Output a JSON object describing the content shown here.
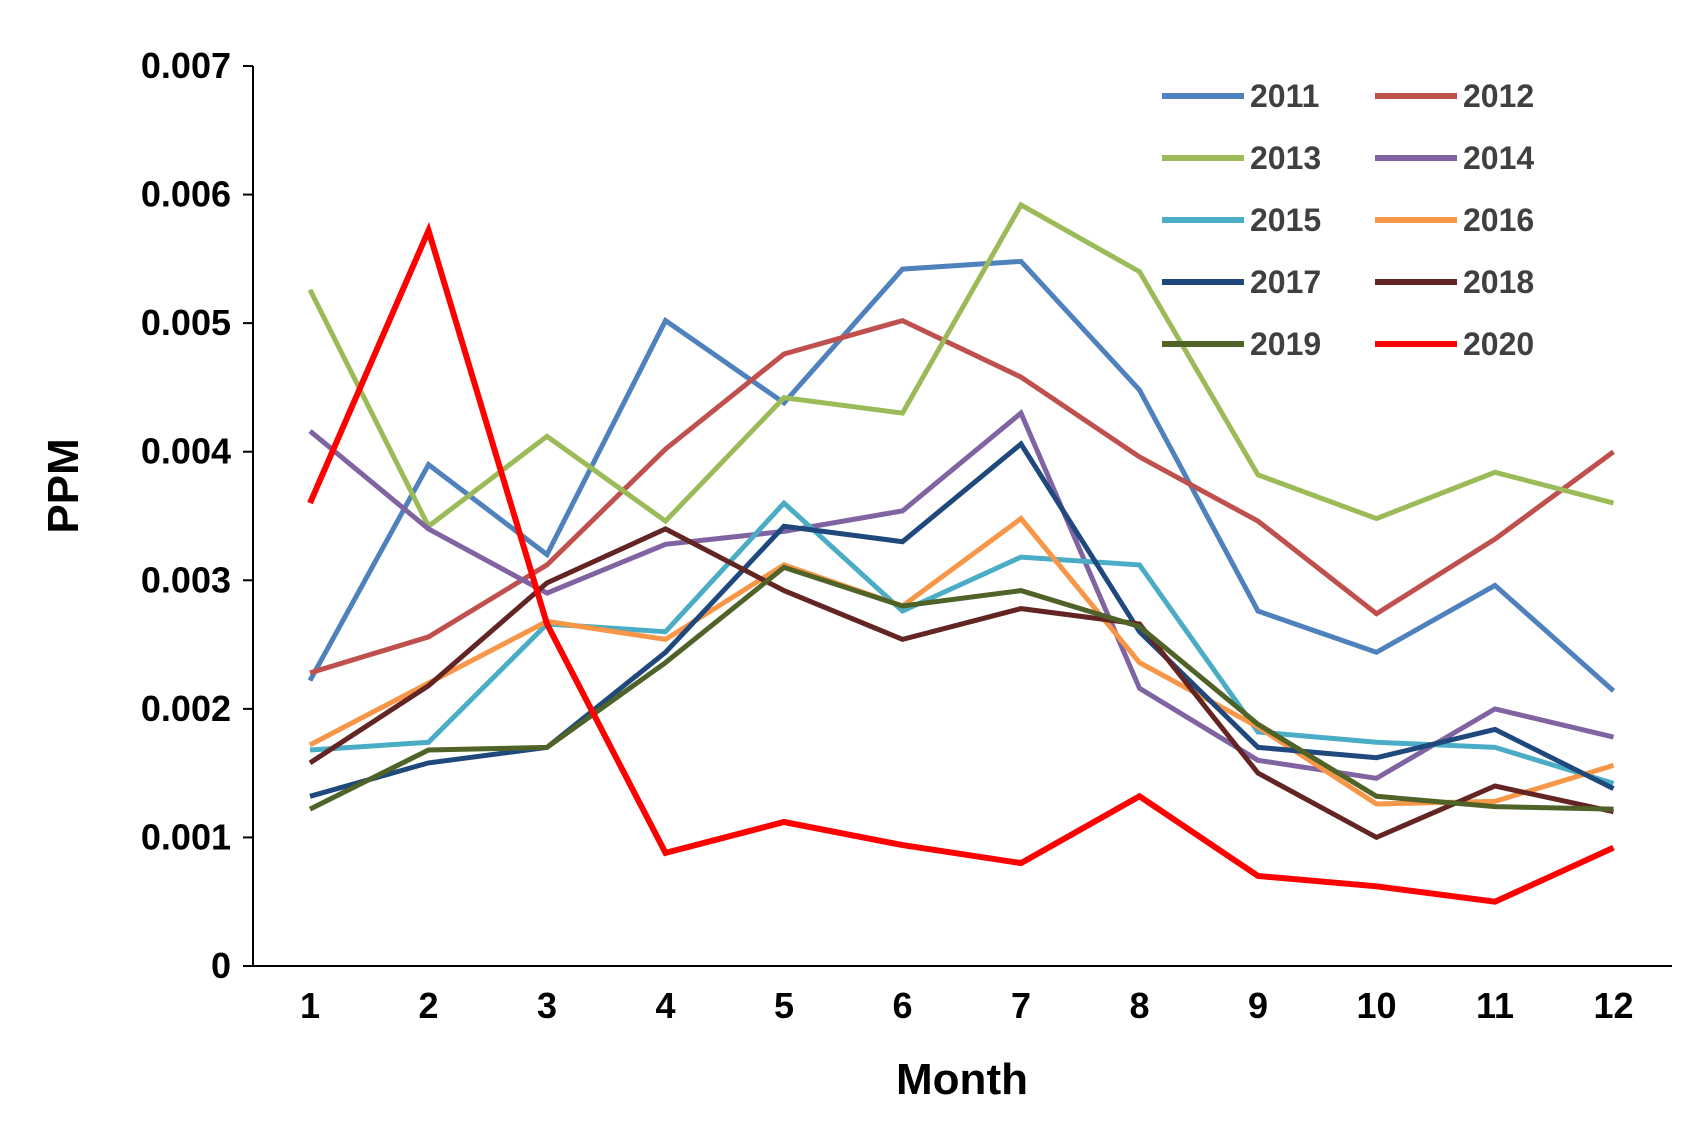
{
  "chart_data": {
    "type": "line",
    "title": "",
    "xlabel": "Month",
    "ylabel": "PPM",
    "x": [
      1,
      2,
      3,
      4,
      5,
      6,
      7,
      8,
      9,
      10,
      11,
      12
    ],
    "x_tick_labels": [
      "1",
      "2",
      "3",
      "4",
      "5",
      "6",
      "7",
      "8",
      "9",
      "10",
      "11",
      "12"
    ],
    "ylim": [
      0,
      0.007
    ],
    "y_ticks": [
      0,
      0.001,
      0.002,
      0.003,
      0.004,
      0.005,
      0.006,
      0.007
    ],
    "y_tick_labels": [
      "0",
      "0.001",
      "0.002",
      "0.003",
      "0.004",
      "0.005",
      "0.006",
      "0.007"
    ],
    "grid": false,
    "legend": "top-right",
    "series": [
      {
        "name": "2011",
        "color": "#4F81BD",
        "values": [
          0.00222,
          0.0039,
          0.0032,
          0.00502,
          0.00438,
          0.00542,
          0.00548,
          0.00448,
          0.00276,
          0.00244,
          0.00296,
          0.00214
        ]
      },
      {
        "name": "2012",
        "color": "#C0504D",
        "values": [
          0.00228,
          0.00256,
          0.00312,
          0.00402,
          0.00476,
          0.00502,
          0.00458,
          0.00396,
          0.00346,
          0.00274,
          0.00332,
          0.004
        ]
      },
      {
        "name": "2013",
        "color": "#9BBB59",
        "values": [
          0.00526,
          0.00342,
          0.00412,
          0.00346,
          0.00442,
          0.0043,
          0.00592,
          0.0054,
          0.00382,
          0.00348,
          0.00384,
          0.0036
        ]
      },
      {
        "name": "2014",
        "color": "#8064A2",
        "values": [
          0.00416,
          0.0034,
          0.0029,
          0.00328,
          0.00338,
          0.00354,
          0.0043,
          0.00216,
          0.0016,
          0.00146,
          0.002,
          0.00178
        ]
      },
      {
        "name": "2015",
        "color": "#4BACC6",
        "values": [
          0.00168,
          0.00174,
          0.00266,
          0.0026,
          0.0036,
          0.00276,
          0.00318,
          0.00312,
          0.00182,
          0.00174,
          0.0017,
          0.00142
        ]
      },
      {
        "name": "2016",
        "color": "#F79646",
        "values": [
          0.00172,
          0.0022,
          0.00268,
          0.00254,
          0.00312,
          0.0028,
          0.00348,
          0.00236,
          0.00186,
          0.00126,
          0.00128,
          0.00156
        ]
      },
      {
        "name": "2017",
        "color": "#1F497D",
        "values": [
          0.00132,
          0.00158,
          0.0017,
          0.00244,
          0.00342,
          0.0033,
          0.00406,
          0.0026,
          0.0017,
          0.00162,
          0.00184,
          0.00138
        ]
      },
      {
        "name": "2018",
        "color": "#632523",
        "values": [
          0.00158,
          0.00218,
          0.00298,
          0.0034,
          0.00292,
          0.00254,
          0.00278,
          0.00266,
          0.0015,
          0.001,
          0.0014,
          0.0012
        ]
      },
      {
        "name": "2019",
        "color": "#4F6228",
        "values": [
          0.00122,
          0.00168,
          0.0017,
          0.00236,
          0.0031,
          0.0028,
          0.00292,
          0.00264,
          0.00188,
          0.00132,
          0.00124,
          0.00122
        ]
      },
      {
        "name": "2020",
        "color": "#FF0000",
        "values": [
          0.0036,
          0.00572,
          0.00266,
          0.00088,
          0.00112,
          0.00094,
          0.0008,
          0.00132,
          0.0007,
          0.00062,
          0.0005,
          0.00092
        ]
      }
    ]
  }
}
